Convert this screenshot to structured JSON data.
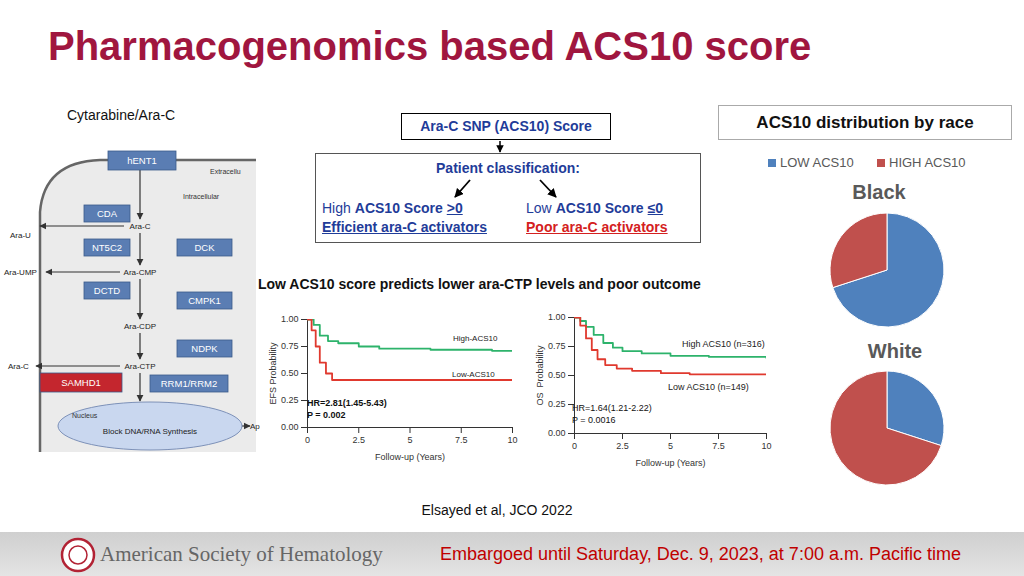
{
  "title": "Pharmacogenomics based ACS10 score",
  "pathway": {
    "title": "Cytarabine/Ara-C",
    "boxes": [
      "hENT1",
      "CDA",
      "NT5C2",
      "DCK",
      "DCTD",
      "CMPK1",
      "NDPK",
      "SAMHD1",
      "RRM1/RRM2"
    ],
    "metabolites": [
      "Ara-C",
      "Ara-U",
      "Ara-UMP",
      "Ara-CMP",
      "Ara-CDP",
      "Ara-C",
      "Ara-CTP"
    ],
    "regions": [
      "Extracellu",
      "Intracellular"
    ],
    "nucleus": [
      "Nucleus",
      "Block DNA/RNA Synthesis"
    ],
    "outcome": "Ap"
  },
  "score_box": {
    "title": "Ara-C SNP (ACS10) Score",
    "classification": "Patient classification:",
    "groups": [
      {
        "prefix": "High",
        "name": "ACS10 Score",
        "threshold": ">0",
        "label": "Efficient ara-C activators"
      },
      {
        "prefix": "Low",
        "name": "ACS10 Score",
        "threshold": "≤0",
        "label": "Poor ara-C activators"
      }
    ]
  },
  "headline": "Low ACS10 score predicts lower ara-CTP levels and poor outcome",
  "race_panel": {
    "title": "ACS10 distribution by race"
  },
  "chart_data": [
    {
      "type": "line",
      "xlabel": "Follow-up (Years)",
      "ylabel": "EFS Probability",
      "xlim": [
        0,
        10
      ],
      "xticks": [
        0,
        2.5,
        5,
        7.5,
        10
      ],
      "ylim": [
        0,
        1
      ],
      "yticks": [
        {
          "value": 0,
          "label": "0.00"
        },
        {
          "value": 0.25,
          "label": "0.25"
        },
        {
          "value": 0.5,
          "label": "0.50"
        },
        {
          "value": 0.75,
          "label": "0.75"
        },
        {
          "value": 1,
          "label": "1.00"
        }
      ],
      "annotations": [
        "HR=2.81(1.45-5.43)",
        "P = 0.002"
      ],
      "series": [
        {
          "name": "High-ACS10",
          "color": "#2db36b",
          "x": [
            0,
            0.3,
            0.6,
            1.0,
            1.5,
            2.5,
            3.5,
            6,
            9,
            10
          ],
          "values": [
            1,
            0.95,
            0.85,
            0.8,
            0.78,
            0.75,
            0.73,
            0.72,
            0.71,
            0.71
          ]
        },
        {
          "name": "Low-ACS10",
          "color": "#e0392e",
          "x": [
            0,
            0.2,
            0.4,
            0.6,
            0.9,
            1.2,
            10
          ],
          "values": [
            1,
            0.9,
            0.75,
            0.6,
            0.5,
            0.44,
            0.44
          ]
        }
      ]
    },
    {
      "type": "line",
      "xlabel": "Follow-up (Years)",
      "ylabel": "OS  Probability",
      "xlim": [
        0,
        10
      ],
      "xticks": [
        0,
        2.5,
        5,
        7.5,
        10
      ],
      "ylim": [
        0,
        1
      ],
      "yticks": [
        {
          "value": 0,
          "label": "0.00"
        },
        {
          "value": 0.25,
          "label": "0.25"
        },
        {
          "value": 0.5,
          "label": "0.50"
        },
        {
          "value": 0.75,
          "label": "0.75"
        },
        {
          "value": 1,
          "label": "1.00"
        }
      ],
      "annotations": [
        "HR=1.64(1.21-2.22)",
        "P = 0.0016"
      ],
      "series": [
        {
          "name": "High ACS10 (n=316)",
          "color": "#2db36b",
          "x": [
            0,
            0.3,
            0.6,
            1.0,
            1.5,
            2.0,
            2.5,
            3.5,
            5,
            7,
            10
          ],
          "values": [
            1,
            0.97,
            0.92,
            0.85,
            0.78,
            0.74,
            0.71,
            0.69,
            0.67,
            0.66,
            0.65
          ]
        },
        {
          "name": "Low ACS10 (n=149)",
          "color": "#e0392e",
          "x": [
            0,
            0.3,
            0.6,
            0.9,
            1.2,
            1.6,
            2.2,
            3,
            4.5,
            6,
            10
          ],
          "values": [
            1,
            0.93,
            0.82,
            0.72,
            0.64,
            0.59,
            0.56,
            0.54,
            0.52,
            0.51,
            0.51
          ]
        }
      ]
    },
    {
      "type": "pie",
      "title": "Black",
      "categories": [
        "LOW ACS10",
        "HIGH ACS10"
      ],
      "values": [
        70,
        30
      ],
      "colors": [
        "#4f81bd",
        "#c0504d"
      ],
      "legend": "top"
    },
    {
      "type": "pie",
      "title": "White",
      "categories": [
        "LOW ACS10",
        "HIGH ACS10"
      ],
      "values": [
        30,
        70
      ],
      "colors": [
        "#4f81bd",
        "#c0504d"
      ]
    }
  ],
  "citation": "Elsayed et al, JCO 2022",
  "footer": {
    "organization": "American Society of Hematology",
    "embargo": "Embargoed until Saturday, Dec. 9, 2023, at 7:00 a.m. Pacific time"
  }
}
